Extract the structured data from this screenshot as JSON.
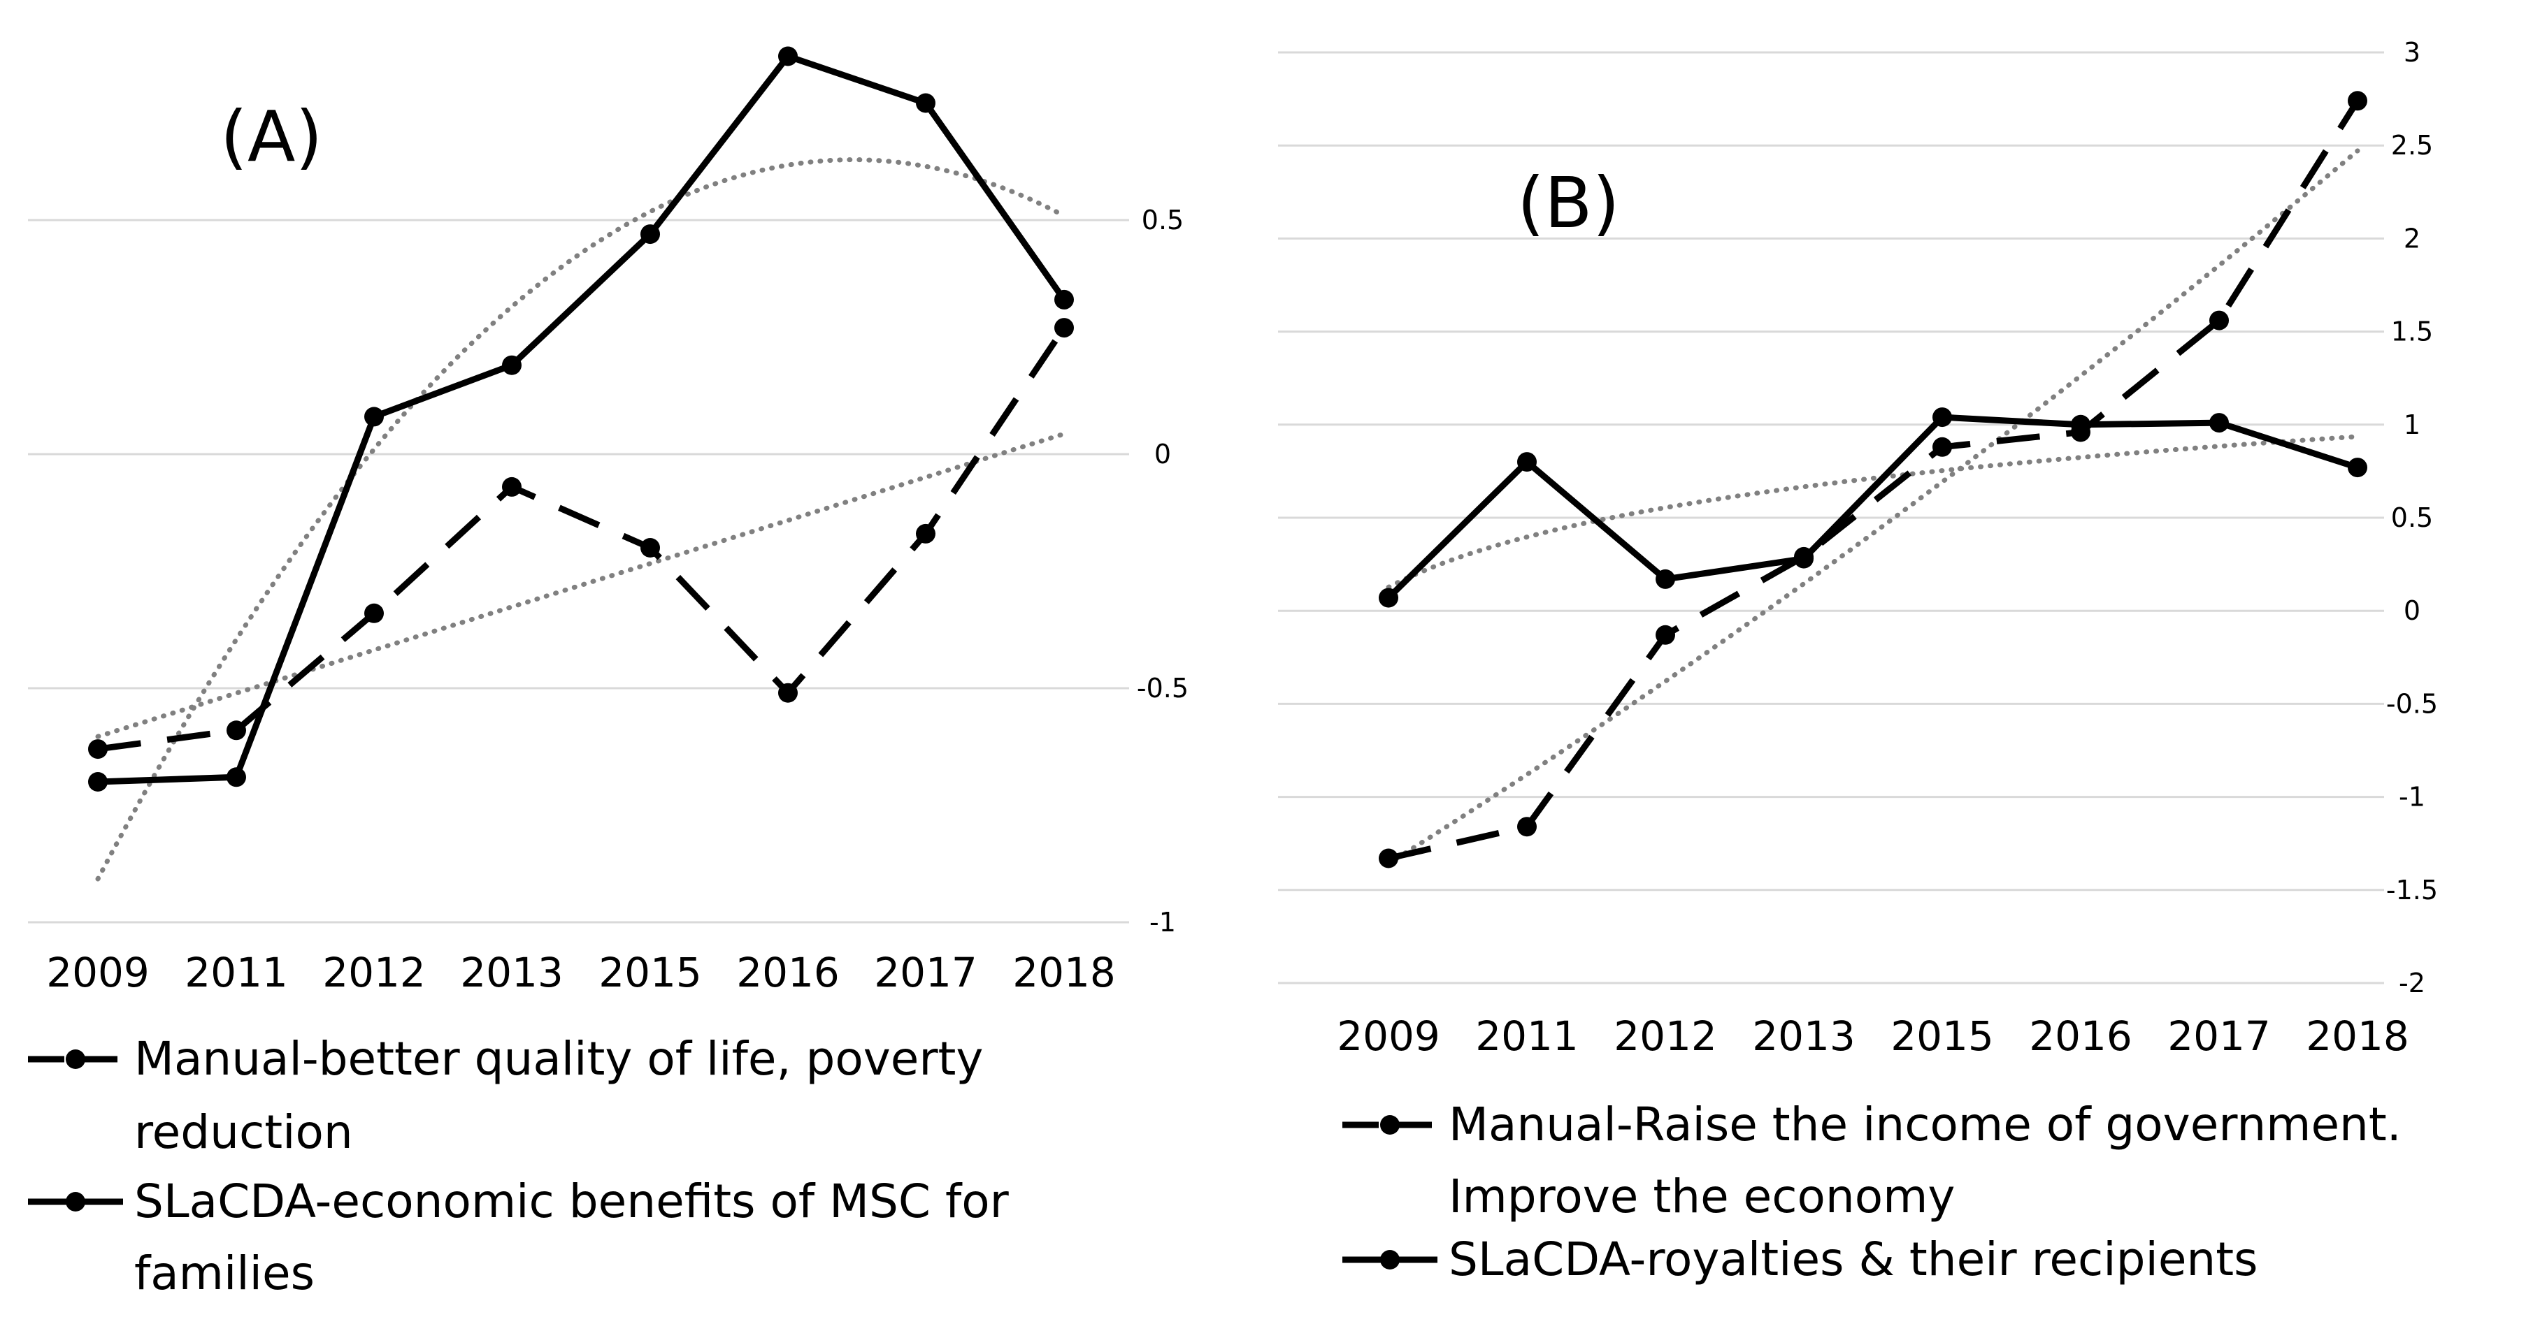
{
  "chart_data": [
    {
      "type": "line",
      "panel_label": "(A)",
      "categories": [
        "2009",
        "2011",
        "2012",
        "2013",
        "2015",
        "2016",
        "2017",
        "2018"
      ],
      "y_axis": {
        "position": "right",
        "min": -1,
        "max": 0.5,
        "ticks": [
          0.5,
          0,
          -0.5,
          -1
        ]
      },
      "gridlines": true,
      "series": [
        {
          "name_lines": [
            "Manual-better quality of life, poverty",
            "reduction"
          ],
          "style": "dashed",
          "values": [
            -0.63,
            -0.59,
            -0.34,
            -0.07,
            -0.2,
            -0.51,
            -0.17,
            0.27
          ],
          "trendline": "linear"
        },
        {
          "name_lines": [
            "SLaCDA-economic benefits of MSC for",
            "families"
          ],
          "style": "solid",
          "values": [
            -0.7,
            -0.69,
            0.08,
            0.19,
            0.47,
            0.85,
            0.75,
            0.33
          ],
          "trendline": "polynomial"
        }
      ],
      "legend_position": "bottom"
    },
    {
      "type": "line",
      "panel_label": "(B)",
      "categories": [
        "2009",
        "2011",
        "2012",
        "2013",
        "2015",
        "2016",
        "2017",
        "2018"
      ],
      "y_axis": {
        "position": "right",
        "min": -2,
        "max": 3,
        "ticks": [
          3,
          2.5,
          2,
          1.5,
          1,
          0.5,
          0,
          -0.5,
          -1,
          -1.5,
          -2
        ]
      },
      "gridlines": true,
      "series": [
        {
          "name_lines": [
            "Manual-Raise the income of government.",
            "Improve the economy"
          ],
          "style": "dashed",
          "values": [
            -1.33,
            -1.16,
            -0.13,
            0.29,
            0.88,
            0.96,
            1.56,
            2.74
          ],
          "trendline": "polynomial"
        },
        {
          "name_lines": [
            "SLaCDA-royalties & their recipients"
          ],
          "style": "solid",
          "values": [
            0.07,
            0.8,
            0.17,
            0.28,
            1.04,
            1.0,
            1.01,
            0.77
          ],
          "trendline": "logarithmic"
        }
      ],
      "legend_position": "bottom"
    }
  ],
  "colors": {
    "series_line": "#000000",
    "trendline": "#808080",
    "gridline": "#d9d9d9",
    "tick_label": "#595959"
  }
}
